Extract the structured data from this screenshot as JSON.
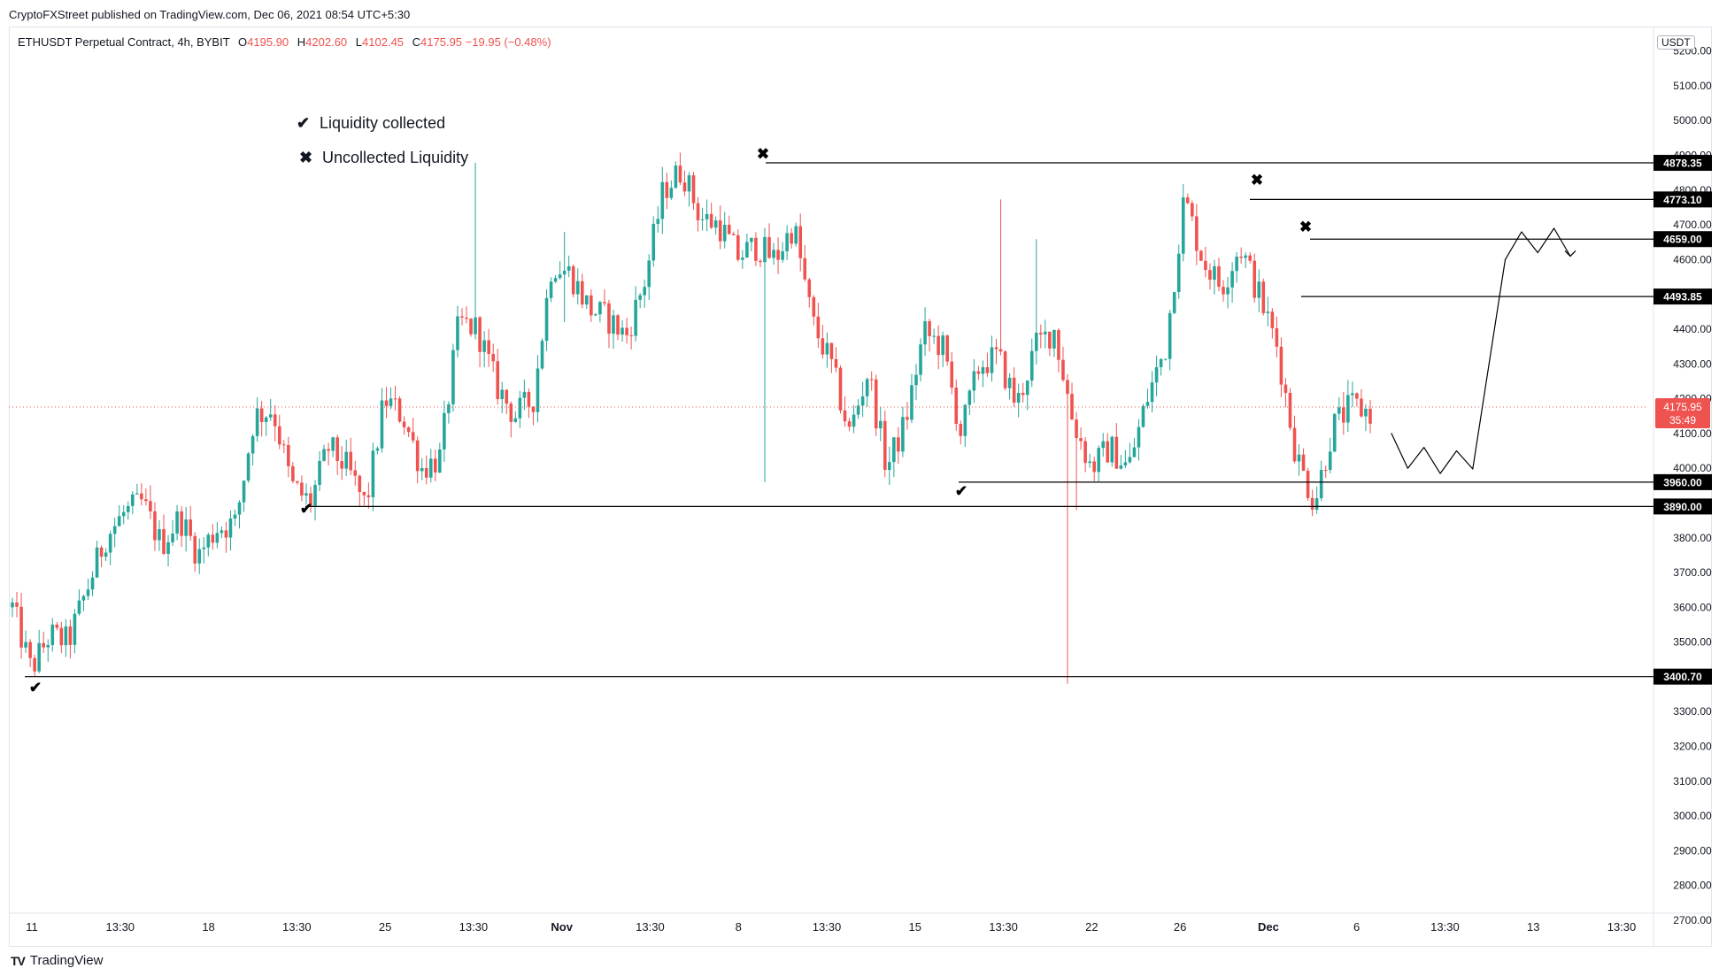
{
  "publisher": "CryptoFXStreet published on TradingView.com, Dec 06, 2021 08:54 UTC+5:30",
  "symbol": {
    "name": "ETHUSDT Perpetual Contract, 4h, BYBIT",
    "o_label": "O",
    "o": "4195.90",
    "h_label": "H",
    "h": "4202.60",
    "l_label": "L",
    "l": "4102.45",
    "c_label": "C",
    "c": "4175.95",
    "change": "−19.95 (−0.48%)"
  },
  "currency_button": "USDT",
  "legend": [
    {
      "marker": "check-icon",
      "text": "Liquidity collected"
    },
    {
      "marker": "cross-icon",
      "text": "Uncollected Liquidity"
    }
  ],
  "brand": "TradingView",
  "colors": {
    "up": "#26a69a",
    "down": "#ef5350",
    "line": "#000000",
    "label_bg": "#000000"
  },
  "chart_data": {
    "type": "candlestick",
    "title": "",
    "ylim": [
      2700,
      5250
    ],
    "y_ticks": [
      2700,
      2800,
      2900,
      3000,
      3100,
      3200,
      3300,
      3400,
      3500,
      3600,
      3700,
      3800,
      3900,
      4000,
      4100,
      4200,
      4300,
      4400,
      4500,
      4600,
      4700,
      4800,
      4900,
      5000,
      5100,
      5200
    ],
    "x_labels": [
      "11",
      "13:30",
      "18",
      "13:30",
      "25",
      "13:30",
      "Nov",
      "13:30",
      "8",
      "13:30",
      "15",
      "13:30",
      "22",
      "26",
      "Dec",
      "6",
      "13:30",
      "13",
      "13:30"
    ],
    "last_price": {
      "value": 4175.95,
      "label": "4175.95",
      "countdown": "35:49"
    },
    "levels": [
      {
        "value": 4878.35,
        "label": "4878.35",
        "status": "uncollected"
      },
      {
        "value": 4773.1,
        "label": "4773.10",
        "status": "uncollected"
      },
      {
        "value": 4659.0,
        "label": "4659.00",
        "status": "uncollected"
      },
      {
        "value": 4493.85,
        "label": "4493.85",
        "status": "level"
      },
      {
        "value": 3960.0,
        "label": "3960.00",
        "status": "collected"
      },
      {
        "value": 3890.0,
        "label": "3890.00",
        "status": "collected"
      },
      {
        "value": 3400.7,
        "label": "3400.70",
        "status": "collected"
      }
    ],
    "swing_path": [
      4100,
      4000,
      4060,
      3985,
      4050,
      3998,
      4300,
      4600,
      4680,
      4620,
      4690,
      4610
    ],
    "candle_count": 306,
    "close_path": [
      3600,
      3420,
      3520,
      3500,
      3650,
      3800,
      3870,
      3900,
      3780,
      3860,
      3750,
      3830,
      3840,
      4150,
      4170,
      3950,
      3900,
      4060,
      4000,
      3890,
      4200,
      4150,
      4000,
      4030,
      4420,
      4400,
      4240,
      4150,
      4200,
      4590,
      4560,
      4460,
      4430,
      4380,
      4540,
      4800,
      4860,
      4720,
      4700,
      4610,
      4640,
      4600,
      4700,
      4420,
      4300,
      4100,
      4280,
      4000,
      4130,
      4390,
      4350,
      4100,
      4300,
      4320,
      4180,
      4350,
      4400,
      4140,
      4000,
      4060,
      4000,
      4200,
      4350,
      4780,
      4600,
      4520,
      4640,
      4500,
      4350,
      4040,
      3900,
      4120,
      4180,
      4160
    ],
    "extremes": [
      {
        "candle": 5,
        "low": 3400.7
      },
      {
        "candle": 104,
        "high": 4878.35
      },
      {
        "candle": 124,
        "high": 4680,
        "low": 4420
      },
      {
        "candle": 169,
        "low": 3960
      },
      {
        "candle": 222,
        "high": 4773.1
      },
      {
        "candle": 230,
        "high": 4659
      },
      {
        "candle": 237,
        "low": 3380
      },
      {
        "candle": 239,
        "low": 3880
      }
    ]
  }
}
